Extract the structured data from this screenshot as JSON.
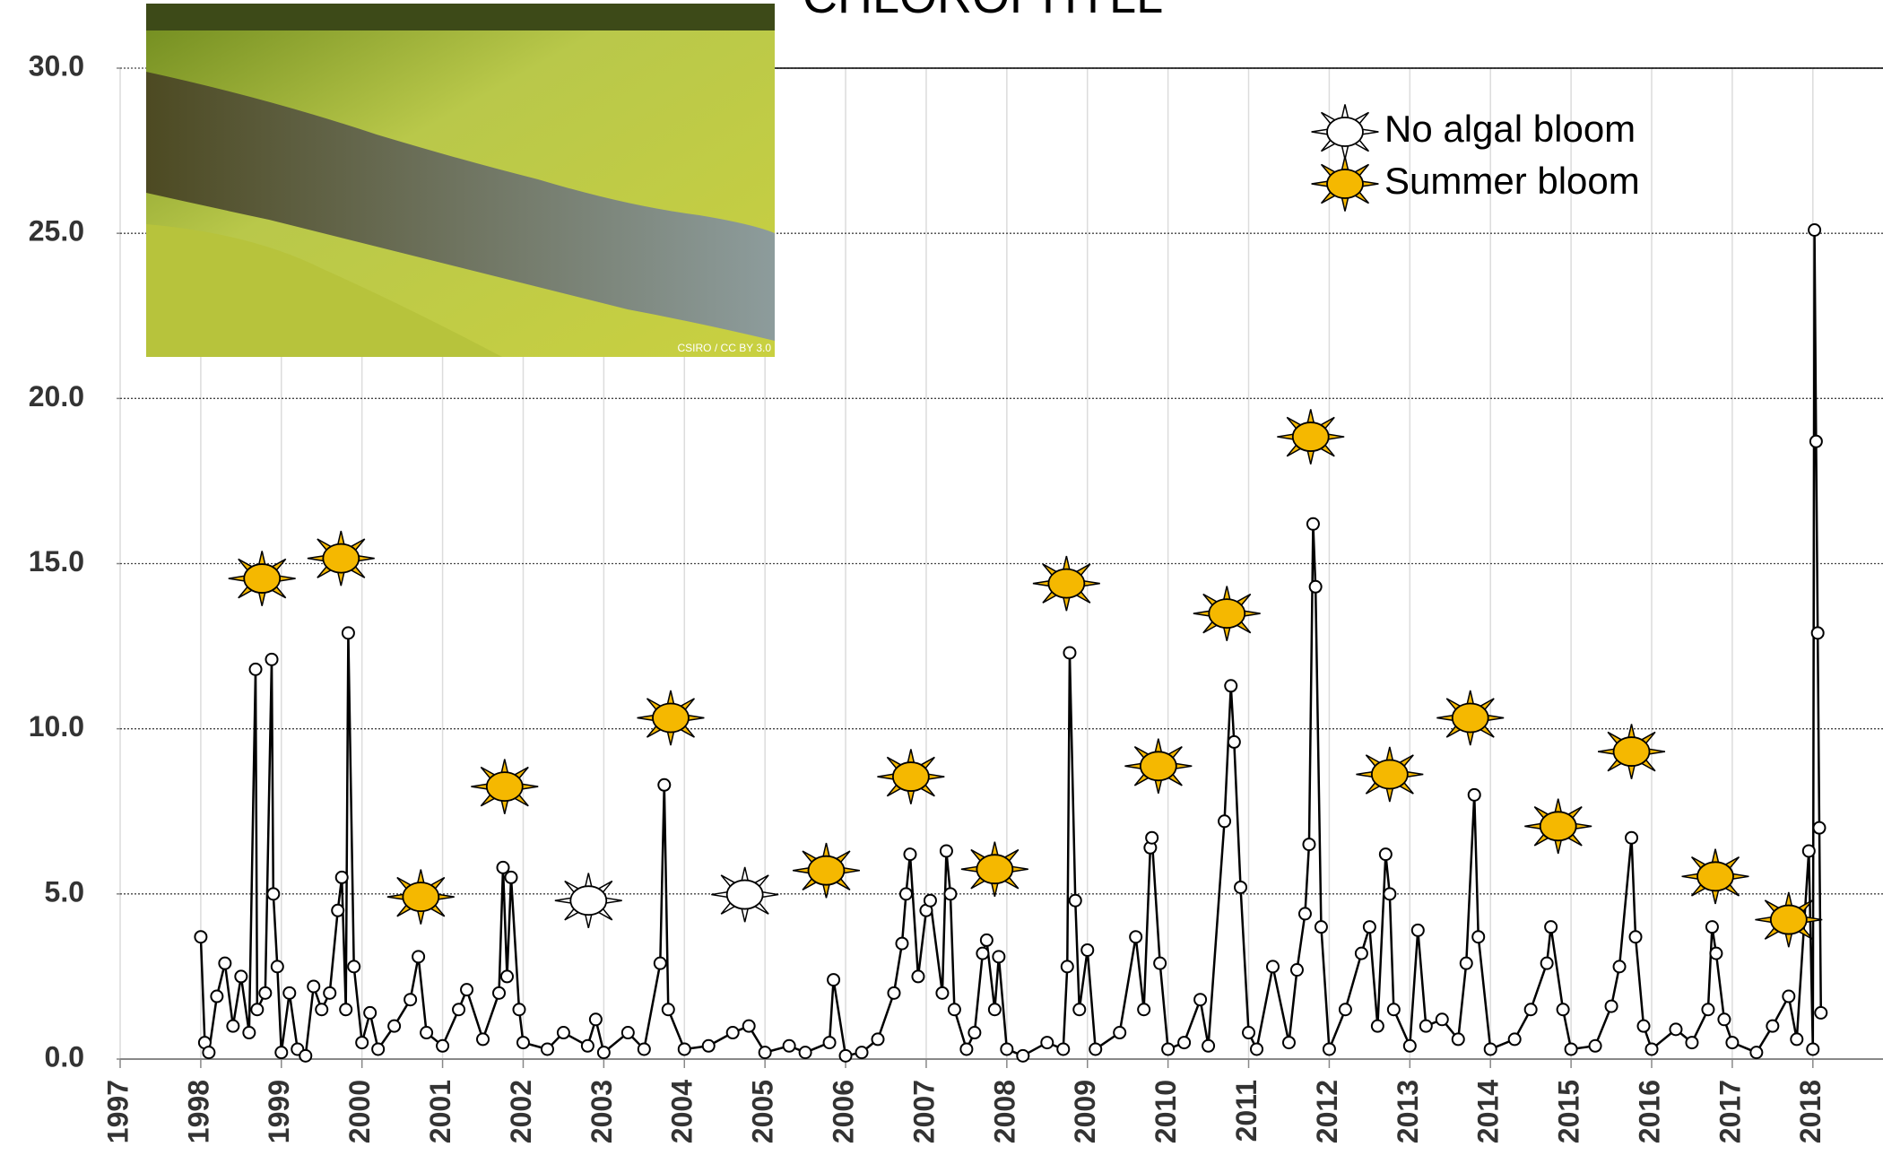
{
  "chart_data": {
    "type": "line",
    "title": "CHLOROPHYLL",
    "photo_credit": "CSIRO / CC BY 3.0",
    "xlim": [
      1997,
      2018.87
    ],
    "ylim": [
      0,
      30
    ],
    "xticks": [
      1997,
      1998,
      1999,
      2000,
      2001,
      2002,
      2003,
      2004,
      2005,
      2006,
      2007,
      2008,
      2009,
      2010,
      2011,
      2012,
      2013,
      2014,
      2015,
      2016,
      2017,
      2018
    ],
    "yticks": [
      {
        "value": 0,
        "label": "0.0"
      },
      {
        "value": 5,
        "label": "5.0"
      },
      {
        "value": 10,
        "label": "10.0"
      },
      {
        "value": 15,
        "label": "15.0"
      },
      {
        "value": 20,
        "label": "20.0"
      },
      {
        "value": 25,
        "label": "25.0"
      },
      {
        "value": 30,
        "label": "30.0"
      }
    ],
    "grid": true,
    "series": [
      {
        "color": "#000000",
        "x": [
          1998.0,
          1998.05,
          1998.1,
          1998.2,
          1998.3,
          1998.4,
          1998.5,
          1998.6,
          1998.68,
          1998.7,
          1998.8,
          1998.88,
          1998.9,
          1998.95,
          1999.0,
          1999.1,
          1999.2,
          1999.3,
          1999.4,
          1999.5,
          1999.6,
          1999.7,
          1999.75,
          1999.8,
          1999.83,
          1999.9,
          2000.0,
          2000.1,
          2000.2,
          2000.4,
          2000.6,
          2000.7,
          2000.8,
          2001.0,
          2001.2,
          2001.3,
          2001.5,
          2001.7,
          2001.75,
          2001.8,
          2001.85,
          2001.95,
          2002.0,
          2002.3,
          2002.5,
          2002.8,
          2002.9,
          2003.0,
          2003.3,
          2003.5,
          2003.7,
          2003.75,
          2003.8,
          2004.0,
          2004.3,
          2004.6,
          2004.8,
          2005.0,
          2005.3,
          2005.5,
          2005.8,
          2005.85,
          2006.0,
          2006.2,
          2006.4,
          2006.6,
          2006.7,
          2006.75,
          2006.8,
          2006.9,
          2007.0,
          2007.05,
          2007.2,
          2007.25,
          2007.3,
          2007.35,
          2007.5,
          2007.6,
          2007.7,
          2007.75,
          2007.85,
          2007.9,
          2008.0,
          2008.2,
          2008.5,
          2008.7,
          2008.75,
          2008.78,
          2008.85,
          2008.9,
          2009.0,
          2009.1,
          2009.4,
          2009.6,
          2009.7,
          2009.78,
          2009.8,
          2009.9,
          2010.0,
          2010.2,
          2010.4,
          2010.5,
          2010.7,
          2010.78,
          2010.82,
          2010.9,
          2011.0,
          2011.1,
          2011.3,
          2011.5,
          2011.6,
          2011.7,
          2011.75,
          2011.8,
          2011.83,
          2011.9,
          2012.0,
          2012.2,
          2012.4,
          2012.5,
          2012.6,
          2012.7,
          2012.75,
          2012.8,
          2013.0,
          2013.1,
          2013.2,
          2013.4,
          2013.6,
          2013.7,
          2013.8,
          2013.85,
          2014.0,
          2014.3,
          2014.5,
          2014.7,
          2014.75,
          2014.9,
          2015.0,
          2015.3,
          2015.5,
          2015.6,
          2015.75,
          2015.8,
          2015.9,
          2016.0,
          2016.3,
          2016.5,
          2016.7,
          2016.75,
          2016.8,
          2016.9,
          2017.0,
          2017.3,
          2017.5,
          2017.7,
          2017.8,
          2017.95,
          2018.0,
          2018.02,
          2018.04,
          2018.06,
          2018.08,
          2018.1
        ],
        "values": [
          3.7,
          0.5,
          0.2,
          1.9,
          2.9,
          1.0,
          2.5,
          0.8,
          11.8,
          1.5,
          2.0,
          12.1,
          5.0,
          2.8,
          0.2,
          2.0,
          0.3,
          0.1,
          2.2,
          1.5,
          2.0,
          4.5,
          5.5,
          1.5,
          12.9,
          2.8,
          0.5,
          1.4,
          0.3,
          1.0,
          1.8,
          3.1,
          0.8,
          0.4,
          1.5,
          2.1,
          0.6,
          2.0,
          5.8,
          2.5,
          5.5,
          1.5,
          0.5,
          0.3,
          0.8,
          0.4,
          1.2,
          0.2,
          0.8,
          0.3,
          2.9,
          8.3,
          1.5,
          0.3,
          0.4,
          0.8,
          1.0,
          0.2,
          0.4,
          0.2,
          0.5,
          2.4,
          0.1,
          0.2,
          0.6,
          2.0,
          3.5,
          5.0,
          6.2,
          2.5,
          4.5,
          4.8,
          2.0,
          6.3,
          5.0,
          1.5,
          0.3,
          0.8,
          3.2,
          3.6,
          1.5,
          3.1,
          0.3,
          0.1,
          0.5,
          0.3,
          2.8,
          12.3,
          4.8,
          1.5,
          3.3,
          0.3,
          0.8,
          3.7,
          1.5,
          6.4,
          6.7,
          2.9,
          0.3,
          0.5,
          1.8,
          0.4,
          7.2,
          11.3,
          9.6,
          5.2,
          0.8,
          0.3,
          2.8,
          0.5,
          2.7,
          4.4,
          6.5,
          16.2,
          14.3,
          4.0,
          0.3,
          1.5,
          3.2,
          4.0,
          1.0,
          6.2,
          5.0,
          1.5,
          0.4,
          3.9,
          1.0,
          1.2,
          0.6,
          2.9,
          8.0,
          3.7,
          0.3,
          0.6,
          1.5,
          2.9,
          4.0,
          1.5,
          0.3,
          0.4,
          1.6,
          2.8,
          6.7,
          3.7,
          1.0,
          0.3,
          0.9,
          0.5,
          1.5,
          4.0,
          3.2,
          1.2,
          0.5,
          0.2,
          1.0,
          1.9,
          0.6,
          6.3,
          0.3,
          25.1,
          18.7,
          12.9,
          7.0,
          1.4
        ]
      },
      {
        "name": "No algal bloom",
        "color": "#ffffff",
        "x": [
          2002.81,
          2004.75
        ],
        "values": [
          4.8,
          4.98
        ]
      },
      {
        "name": "Summer bloom",
        "color": "#f5b800",
        "x": [
          1998.76,
          1999.74,
          2000.73,
          2001.77,
          2003.83,
          2005.76,
          2006.81,
          2007.85,
          2008.74,
          2009.88,
          2010.73,
          2011.77,
          2012.75,
          2013.75,
          2014.84,
          2015.75,
          2016.79,
          2017.7
        ],
        "values": [
          14.55,
          15.16,
          4.91,
          8.25,
          10.33,
          5.71,
          8.55,
          5.75,
          14.4,
          8.87,
          13.49,
          18.84,
          8.62,
          10.33,
          7.05,
          9.31,
          5.53,
          4.22
        ]
      }
    ]
  }
}
